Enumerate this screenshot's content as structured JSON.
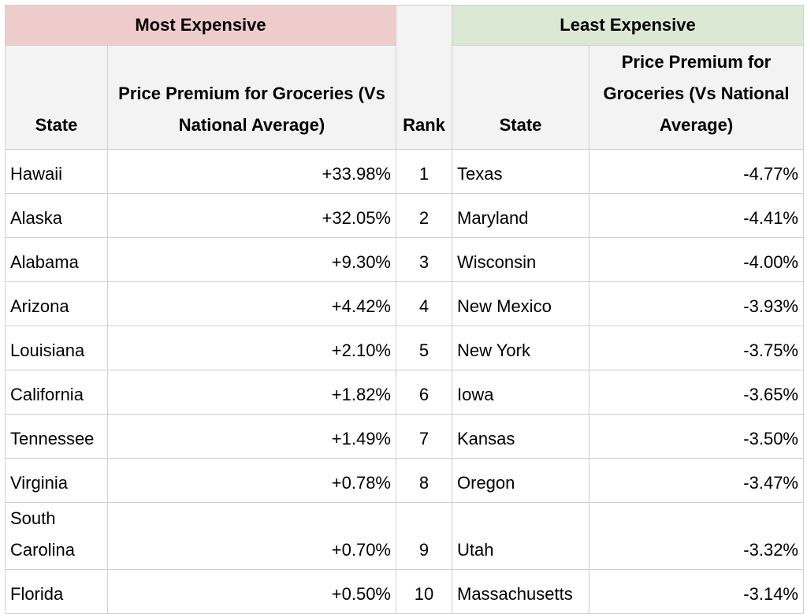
{
  "table": {
    "groups": [
      "Most Expensive",
      "Least Expensive"
    ],
    "columns": [
      "State",
      "Price Premium for Groceries (Vs National Average)",
      "Rank",
      "State",
      "Price Premium for Groceries (Vs National Average)"
    ],
    "rows": [
      [
        "Hawaii",
        "+33.98%",
        1,
        "Texas",
        "-4.77%"
      ],
      [
        "Alaska",
        "+32.05%",
        2,
        "Maryland",
        "-4.41%"
      ],
      [
        "Alabama",
        "+9.30%",
        3,
        "Wisconsin",
        "-4.00%"
      ],
      [
        "Arizona",
        "+4.42%",
        4,
        "New Mexico",
        "-3.93%"
      ],
      [
        "Louisiana",
        "+2.10%",
        5,
        "New York",
        "-3.75%"
      ],
      [
        "California",
        "+1.82%",
        6,
        "Iowa",
        "-3.65%"
      ],
      [
        "Tennessee",
        "+1.49%",
        7,
        "Kansas",
        "-3.50%"
      ],
      [
        "Virginia",
        "+0.78%",
        8,
        "Oregon",
        "-3.47%"
      ],
      [
        "South Carolina",
        "+0.70%",
        9,
        "Utah",
        "-3.32%"
      ],
      [
        "Florida",
        "+0.50%",
        10,
        "Massachusetts",
        "-3.14%"
      ]
    ]
  }
}
